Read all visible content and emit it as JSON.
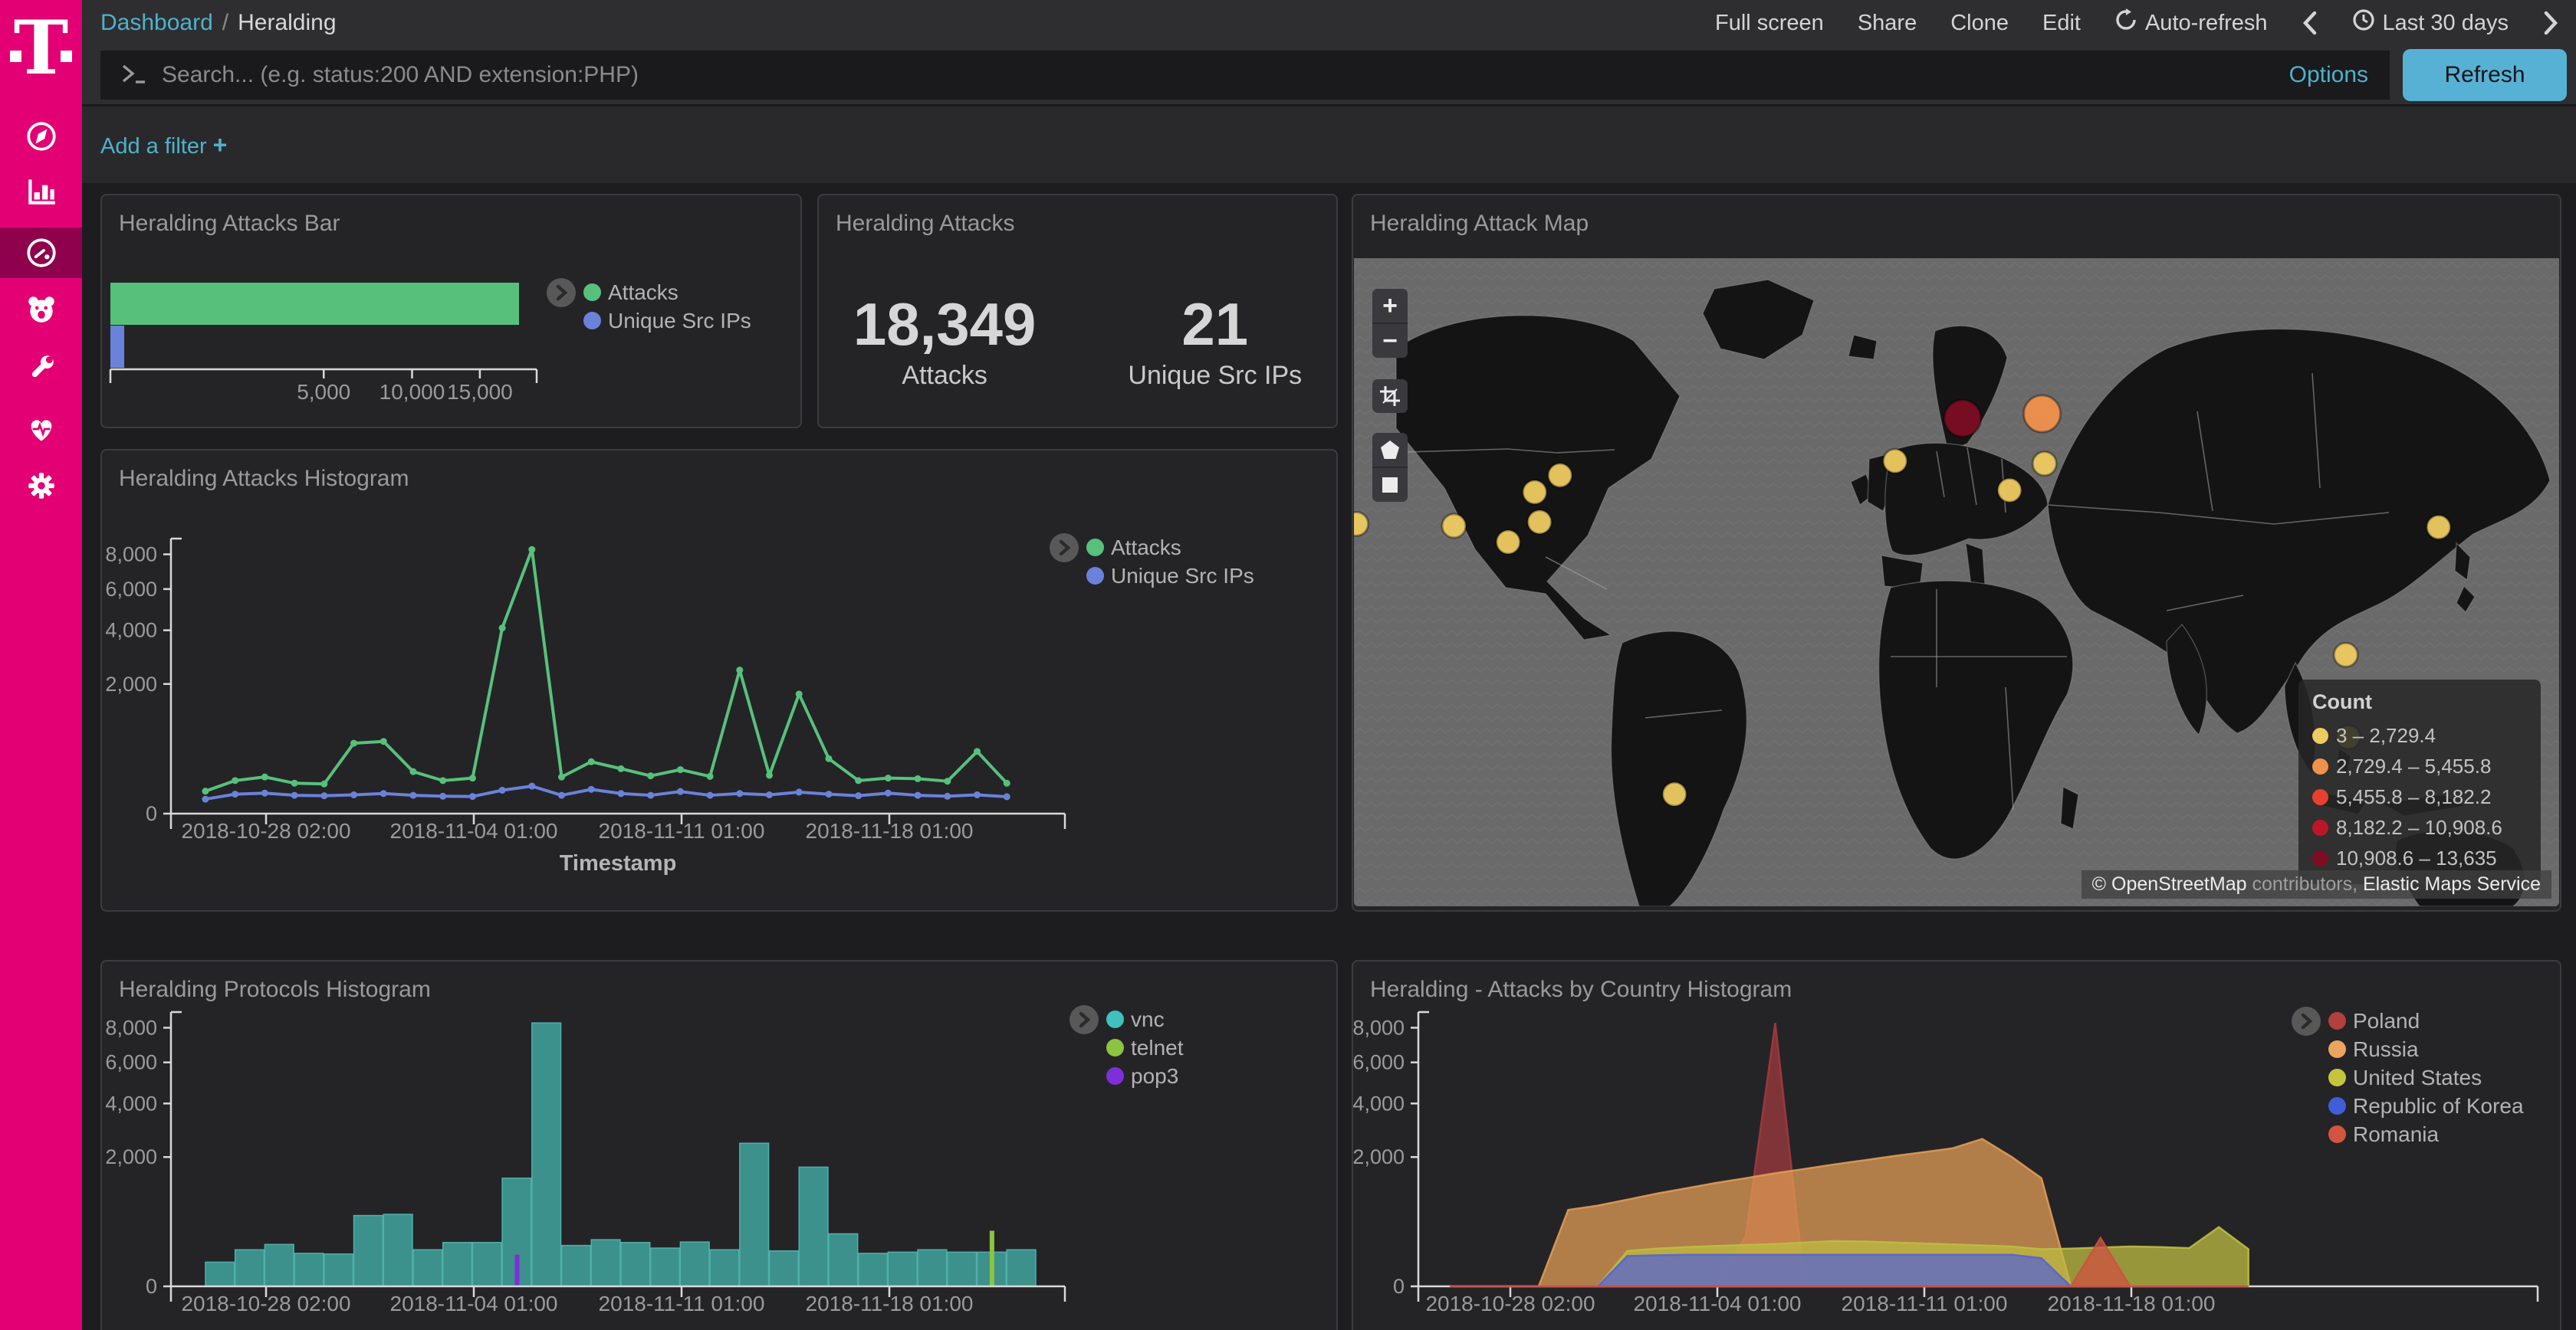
{
  "brand": {
    "accent": "#e20074",
    "logo_letter": "T"
  },
  "sidebar": {
    "items": [
      {
        "icon": "compass-icon"
      },
      {
        "icon": "bar-chart-icon"
      },
      {
        "icon": "gauge-icon",
        "active": true
      },
      {
        "icon": "bear-icon"
      },
      {
        "icon": "wrench-icon"
      },
      {
        "icon": "heartbeat-icon"
      },
      {
        "icon": "gear-icon"
      }
    ]
  },
  "topnav": {
    "breadcrumb": {
      "root": "Dashboard",
      "separator": "/",
      "current": "Heralding"
    },
    "actions": [
      "Full screen",
      "Share",
      "Clone",
      "Edit"
    ],
    "auto_refresh": "Auto-refresh",
    "time_back": "‹",
    "time_range": "Last 30 days",
    "time_forward": "›"
  },
  "search_bar": {
    "placeholder": "Search... (e.g. status:200 AND extension:PHP)",
    "options_label": "Options",
    "refresh_label": "Refresh"
  },
  "filter_bar": {
    "add_filter_label": "Add a filter",
    "plus": "+"
  },
  "panels": {
    "attacks_bar": {
      "title": "Heralding Attacks Bar"
    },
    "attacks_metric": {
      "title": "Heralding Attacks",
      "metrics": [
        {
          "value": "18,349",
          "label": "Attacks"
        },
        {
          "value": "21",
          "label": "Unique Src IPs"
        }
      ]
    },
    "attack_map": {
      "title": "Heralding Attack Map",
      "legend_title": "Count",
      "legend": [
        {
          "label": "3 – 2,729.4",
          "color": "#eecb61"
        },
        {
          "label": "2,729.4 – 5,455.8",
          "color": "#f0914d"
        },
        {
          "label": "5,455.8 – 8,182.2",
          "color": "#e8402e"
        },
        {
          "label": "8,182.2 – 10,908.6",
          "color": "#bd1727"
        },
        {
          "label": "10,908.6 – 13,635",
          "color": "#7c0d23"
        }
      ],
      "attribution": {
        "copyright": "© OpenStreetMap",
        "middle": " contributors, ",
        "service": "Elastic Maps Service"
      }
    },
    "attacks_histogram": {
      "title": "Heralding Attacks Histogram"
    },
    "protocols_histogram": {
      "title": "Heralding Protocols Histogram"
    },
    "country_histogram": {
      "title": "Heralding - Attacks by Country Histogram"
    }
  },
  "chart_data": [
    {
      "id": "attacks_bar",
      "type": "bar",
      "orientation": "horizontal",
      "x_scale": "sqrt",
      "xticks": [
        5000,
        10000,
        15000
      ],
      "xlim": [
        0,
        20000
      ],
      "series": [
        {
          "name": "Attacks",
          "color": "#57c17b",
          "value": 18349
        },
        {
          "name": "Unique Src IPs",
          "color": "#6b82da",
          "value": 21
        }
      ]
    },
    {
      "id": "attacks_histogram",
      "type": "line",
      "y_scale": "sqrt",
      "ylim": [
        0,
        8800
      ],
      "yticks": [
        0,
        2000,
        4000,
        6000,
        8000
      ],
      "xlabel": "Timestamp",
      "xtick_labels": [
        "2018-10-28 02:00",
        "2018-11-04 01:00",
        "2018-11-11 01:00",
        "2018-11-18 01:00"
      ],
      "x": [
        "2018-10-26",
        "2018-10-27",
        "2018-10-28",
        "2018-10-29",
        "2018-10-30",
        "2018-10-31",
        "2018-11-01",
        "2018-11-02",
        "2018-11-03",
        "2018-11-04",
        "2018-11-05",
        "2018-11-06",
        "2018-11-07",
        "2018-11-08",
        "2018-11-09",
        "2018-11-10",
        "2018-11-11",
        "2018-11-12",
        "2018-11-13",
        "2018-11-14",
        "2018-11-15",
        "2018-11-16",
        "2018-11-17",
        "2018-11-18",
        "2018-11-19",
        "2018-11-20",
        "2018-11-21",
        "2018-11-22"
      ],
      "series": [
        {
          "name": "Attacks",
          "color": "#57c17b",
          "values": [
            60,
            130,
            160,
            110,
            105,
            590,
            620,
            210,
            130,
            150,
            4100,
            8300,
            160,
            320,
            240,
            170,
            230,
            165,
            2450,
            175,
            1700,
            360,
            130,
            150,
            145,
            125,
            460,
            110
          ]
        },
        {
          "name": "Unique Src IPs",
          "color": "#6b82da",
          "values": [
            25,
            45,
            50,
            40,
            38,
            42,
            48,
            40,
            36,
            35,
            65,
            90,
            40,
            70,
            48,
            40,
            58,
            40,
            48,
            42,
            55,
            45,
            38,
            50,
            40,
            36,
            42,
            34
          ]
        }
      ]
    },
    {
      "id": "protocols_histogram",
      "type": "bar",
      "y_scale": "sqrt",
      "ylim": [
        0,
        8800
      ],
      "yticks": [
        0,
        2000,
        4000,
        6000,
        8000
      ],
      "xlabel": "Timestamp",
      "xtick_labels": [
        "2018-10-28 02:00",
        "2018-11-04 01:00",
        "2018-11-11 01:00",
        "2018-11-18 01:00"
      ],
      "x": [
        "2018-10-26",
        "2018-10-27",
        "2018-10-28",
        "2018-10-29",
        "2018-10-30",
        "2018-10-31",
        "2018-11-01",
        "2018-11-02",
        "2018-11-03",
        "2018-11-04",
        "2018-11-05",
        "2018-11-06",
        "2018-11-07",
        "2018-11-08",
        "2018-11-09",
        "2018-11-10",
        "2018-11-11",
        "2018-11-12",
        "2018-11-13",
        "2018-11-14",
        "2018-11-15",
        "2018-11-16",
        "2018-11-17",
        "2018-11-18",
        "2018-11-19",
        "2018-11-20",
        "2018-11-21",
        "2018-11-22"
      ],
      "series": [
        {
          "name": "vnc",
          "color": "#3d918c",
          "legend_color": "#3fc1bd",
          "values": [
            70,
            160,
            210,
            130,
            125,
            600,
            620,
            160,
            230,
            230,
            1400,
            8300,
            200,
            260,
            230,
            175,
            235,
            160,
            2450,
            150,
            1700,
            330,
            130,
            140,
            160,
            140,
            140,
            160
          ]
        },
        {
          "name": "telnet",
          "color": "#8bc442",
          "legend_color": "#8bc442",
          "values": [
            0,
            0,
            0,
            0,
            0,
            0,
            0,
            0,
            0,
            0,
            0,
            0,
            0,
            0,
            0,
            0,
            0,
            0,
            0,
            0,
            0,
            0,
            0,
            0,
            0,
            0,
            370,
            0
          ]
        },
        {
          "name": "pop3",
          "color": "#7e2fd9",
          "legend_color": "#7e2fd9",
          "values": [
            0,
            0,
            0,
            0,
            0,
            0,
            0,
            0,
            0,
            0,
            120,
            0,
            0,
            0,
            0,
            0,
            0,
            0,
            0,
            0,
            0,
            0,
            0,
            0,
            0,
            0,
            0,
            0
          ]
        }
      ]
    },
    {
      "id": "country_histogram",
      "type": "area",
      "y_scale": "sqrt",
      "ylim": [
        0,
        8800
      ],
      "yticks": [
        0,
        2000,
        4000,
        6000,
        8000
      ],
      "xlabel": "Timestamp",
      "xtick_labels": [
        "2018-10-28 02:00",
        "2018-11-04 01:00",
        "2018-11-11 01:00",
        "2018-11-18 01:00"
      ],
      "x": [
        "2018-10-26",
        "2018-10-27",
        "2018-10-28",
        "2018-10-29",
        "2018-10-30",
        "2018-10-31",
        "2018-11-01",
        "2018-11-02",
        "2018-11-03",
        "2018-11-04",
        "2018-11-05",
        "2018-11-06",
        "2018-11-07",
        "2018-11-08",
        "2018-11-09",
        "2018-11-10",
        "2018-11-11",
        "2018-11-12",
        "2018-11-13",
        "2018-11-14",
        "2018-11-15",
        "2018-11-16",
        "2018-11-17",
        "2018-11-18",
        "2018-11-19",
        "2018-11-20",
        "2018-11-21",
        "2018-11-22"
      ],
      "series": [
        {
          "name": "Poland",
          "color": "#a03a3e",
          "legend_color": "#b2403c",
          "values": [
            0,
            0,
            0,
            0,
            0,
            0,
            0,
            0,
            0,
            0,
            300,
            8300,
            0,
            0,
            0,
            0,
            0,
            0,
            0,
            0,
            0,
            0,
            0,
            0,
            0,
            0,
            0,
            0
          ]
        },
        {
          "name": "Russia",
          "color": "#e09b56",
          "legend_color": "#eba55f",
          "values": [
            0,
            0,
            0,
            0,
            700,
            780,
            900,
            1030,
            1150,
            1280,
            1400,
            1530,
            1650,
            1780,
            1900,
            2030,
            2150,
            2280,
            2600,
            2000,
            1400,
            0,
            0,
            0,
            0,
            0,
            0,
            0
          ]
        },
        {
          "name": "United States",
          "color": "#bdbc42",
          "legend_color": "#c6c43f",
          "values": [
            0,
            0,
            0,
            0,
            0,
            0,
            150,
            170,
            185,
            195,
            205,
            215,
            230,
            245,
            240,
            230,
            220,
            210,
            200,
            190,
            165,
            170,
            180,
            190,
            185,
            175,
            420,
            165
          ]
        },
        {
          "name": "Republic of Korea",
          "color": "#5765cf",
          "legend_color": "#3f5ed7",
          "values": [
            0,
            0,
            0,
            0,
            0,
            0,
            110,
            115,
            120,
            120,
            120,
            120,
            120,
            120,
            120,
            120,
            120,
            120,
            120,
            120,
            95,
            0,
            0,
            0,
            0,
            0,
            0,
            0
          ]
        },
        {
          "name": "Romania",
          "color": "#cf5140",
          "legend_color": "#d4553f",
          "values": [
            0,
            0,
            0,
            0,
            0,
            0,
            0,
            0,
            0,
            0,
            0,
            0,
            0,
            0,
            0,
            0,
            0,
            0,
            0,
            0,
            0,
            0,
            280,
            0,
            0,
            0,
            0,
            0
          ]
        }
      ]
    },
    {
      "id": "attack_map",
      "type": "scatter",
      "note": "geo bubble map, x/y are fractions of map viewport",
      "points": [
        {
          "x": 0.15,
          "y": 0.361,
          "bucket": 0,
          "size": "small"
        },
        {
          "x": 0.171,
          "y": 0.335,
          "bucket": 0,
          "size": "small"
        },
        {
          "x": 0.154,
          "y": 0.407,
          "bucket": 0,
          "size": "small"
        },
        {
          "x": 0.083,
          "y": 0.413,
          "bucket": 0,
          "size": "small"
        },
        {
          "x": 0.128,
          "y": 0.438,
          "bucket": 0,
          "size": "small"
        },
        {
          "x": 0.002,
          "y": 0.41,
          "bucket": 0,
          "size": "small"
        },
        {
          "x": 0.449,
          "y": 0.313,
          "bucket": 0,
          "size": "small"
        },
        {
          "x": 0.573,
          "y": 0.317,
          "bucket": 0,
          "size": "small"
        },
        {
          "x": 0.544,
          "y": 0.358,
          "bucket": 0,
          "size": "small"
        },
        {
          "x": 0.9,
          "y": 0.415,
          "bucket": 0,
          "size": "small"
        },
        {
          "x": 0.823,
          "y": 0.612,
          "bucket": 0,
          "size": "small"
        },
        {
          "x": 0.825,
          "y": 0.739,
          "bucket": 0,
          "size": "small"
        },
        {
          "x": 0.266,
          "y": 0.827,
          "bucket": 0,
          "size": "small"
        },
        {
          "x": 0.505,
          "y": 0.247,
          "bucket": 4,
          "size": "large"
        },
        {
          "x": 0.571,
          "y": 0.24,
          "bucket": 1,
          "size": "large"
        }
      ]
    }
  ]
}
